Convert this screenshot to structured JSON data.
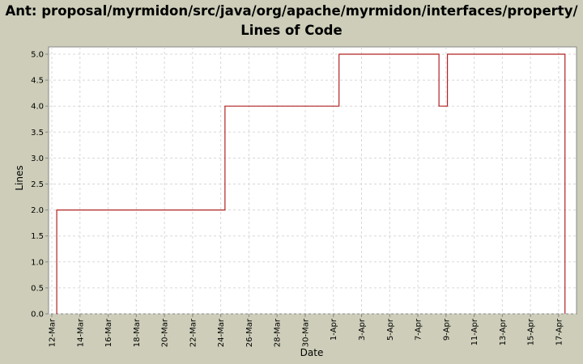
{
  "chart_data": {
    "type": "line",
    "title": "Ant: proposal/myrmidon/src/java/org/apache/myrmidon/interfaces/property/ Lines of Code",
    "x_label": "Date",
    "y_label": "Lines",
    "x": [
      12.35,
      12.35,
      24.3,
      24.3,
      32.4,
      32.4,
      39.5,
      39.5,
      40.1,
      40.1,
      48.45,
      48.45
    ],
    "series": [
      {
        "color": "#b22222",
        "values": [
          0,
          2,
          2,
          4,
          4,
          5,
          5,
          4,
          4,
          5,
          5,
          0
        ]
      }
    ],
    "xlim": [
      11.77,
      49.27
    ],
    "xticks": [
      {
        "value": 12,
        "label": "12-Mar"
      },
      {
        "value": 14,
        "label": "14-Mar"
      },
      {
        "value": 16,
        "label": "16-Mar"
      },
      {
        "value": 18,
        "label": "18-Mar"
      },
      {
        "value": 20,
        "label": "20-Mar"
      },
      {
        "value": 22,
        "label": "22-Mar"
      },
      {
        "value": 24,
        "label": "24-Mar"
      },
      {
        "value": 26,
        "label": "26-Mar"
      },
      {
        "value": 28,
        "label": "28-Mar"
      },
      {
        "value": 30,
        "label": "30-Mar"
      },
      {
        "value": 32,
        "label": "1-Apr"
      },
      {
        "value": 34,
        "label": "3-Apr"
      },
      {
        "value": 36,
        "label": "5-Apr"
      },
      {
        "value": 38,
        "label": "7-Apr"
      },
      {
        "value": 40,
        "label": "9-Apr"
      },
      {
        "value": 42,
        "label": "11-Apr"
      },
      {
        "value": 44,
        "label": "13-Apr"
      },
      {
        "value": 46,
        "label": "15-Apr"
      },
      {
        "value": 48,
        "label": "17-Apr"
      }
    ],
    "ylim": [
      0,
      5.14
    ],
    "yticks": [
      {
        "value": 0,
        "label": "0.0"
      },
      0.5,
      {
        "value": 1,
        "label": "1.0"
      },
      1.5,
      {
        "value": 2,
        "label": "2.0"
      },
      2.5,
      {
        "value": 3,
        "label": "3.0"
      },
      3.5,
      {
        "value": 4,
        "label": "4.0"
      },
      4.5,
      {
        "value": 5,
        "label": "5.0"
      }
    ],
    "grid": true
  }
}
